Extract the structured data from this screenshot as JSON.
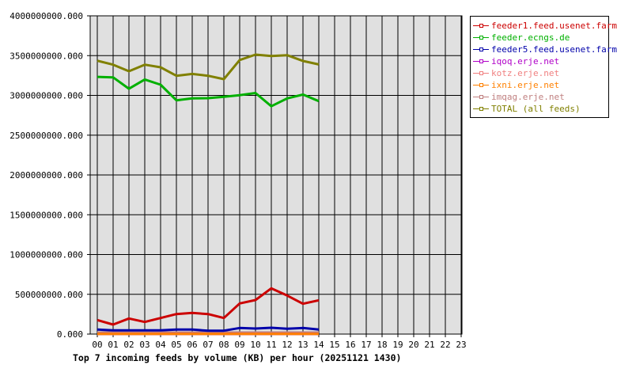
{
  "chart_data": {
    "type": "line",
    "title": "Top 7 incoming feeds by volume (KB) per hour (20251121 1430)",
    "xlabel": "",
    "ylabel": "",
    "ylim": [
      0,
      4000000000
    ],
    "yticks": [
      "0.000",
      "500000000.000",
      "1000000000.000",
      "1500000000.000",
      "2000000000.000",
      "2500000000.000",
      "3000000000.000",
      "3500000000.000",
      "4000000000.000"
    ],
    "categories": [
      "00",
      "01",
      "02",
      "03",
      "04",
      "05",
      "06",
      "07",
      "08",
      "09",
      "10",
      "11",
      "12",
      "13",
      "14",
      "15",
      "16",
      "17",
      "18",
      "19",
      "20",
      "21",
      "22",
      "23"
    ],
    "grid": true,
    "legend_position": "right",
    "series": [
      {
        "name": "feeder1.feed.usenet.farm",
        "color": "#cc0000",
        "values": [
          176000000,
          119000000,
          196000000,
          152000000,
          202000000,
          252000000,
          266000000,
          252000000,
          202000000,
          385000000,
          428000000,
          575000000,
          485000000,
          381000000,
          425000000
        ]
      },
      {
        "name": "feeder.ecngs.de",
        "color": "#00b000",
        "values": [
          3233000000,
          3227000000,
          3084000000,
          3200000000,
          3134000000,
          2938000000,
          2962000000,
          2965000000,
          2982000000,
          3003000000,
          3030000000,
          2864000000,
          2962000000,
          3011000000,
          2927000000
        ]
      },
      {
        "name": "feeder5.feed.usenet.farm",
        "color": "#0000aa",
        "values": [
          57000000,
          47000000,
          47000000,
          47000000,
          47000000,
          57000000,
          57000000,
          43000000,
          43000000,
          77000000,
          70000000,
          80000000,
          67000000,
          77000000,
          57000000
        ]
      },
      {
        "name": "iqoq.erje.net",
        "color": "#b000c8",
        "values": [
          2000000,
          2000000,
          2000000,
          2000000,
          2000000,
          2000000,
          2000000,
          2000000,
          2000000,
          2000000,
          2000000,
          2000000,
          2000000,
          2000000,
          2000000
        ]
      },
      {
        "name": "kotz.erje.net",
        "color": "#f08080",
        "values": [
          3000000,
          3000000,
          3000000,
          3000000,
          3000000,
          3000000,
          3000000,
          3000000,
          3000000,
          3000000,
          3000000,
          3000000,
          3000000,
          3000000,
          3000000
        ]
      },
      {
        "name": "ixni.erje.net",
        "color": "#ff8000",
        "values": [
          2000000,
          2000000,
          2000000,
          2000000,
          2000000,
          2000000,
          2000000,
          2000000,
          2000000,
          2000000,
          2000000,
          2000000,
          2000000,
          2000000,
          2000000
        ]
      },
      {
        "name": "imqag.erje.net",
        "color": "#c08080",
        "values": [
          10000000,
          10000000,
          10000000,
          10000000,
          10000000,
          10000000,
          10000000,
          10000000,
          10000000,
          10000000,
          10000000,
          10000000,
          10000000,
          10000000,
          10000000
        ]
      },
      {
        "name": "TOTAL (all feeds)",
        "color": "#808000",
        "values": [
          3436000000,
          3386000000,
          3303000000,
          3386000000,
          3353000000,
          3247000000,
          3270000000,
          3247000000,
          3204000000,
          3445000000,
          3512000000,
          3495000000,
          3505000000,
          3433000000,
          3389000000
        ]
      }
    ]
  },
  "legend": {
    "items": [
      {
        "label": "feeder1.feed.usenet.farm",
        "color": "#cc0000"
      },
      {
        "label": "feeder.ecngs.de",
        "color": "#00b000"
      },
      {
        "label": "feeder5.feed.usenet.farm",
        "color": "#0000aa"
      },
      {
        "label": "iqoq.erje.net",
        "color": "#b000c8"
      },
      {
        "label": "kotz.erje.net",
        "color": "#f08080"
      },
      {
        "label": "ixni.erje.net",
        "color": "#ff8000"
      },
      {
        "label": "imqag.erje.net",
        "color": "#c08080"
      },
      {
        "label": "TOTAL (all feeds)",
        "color": "#808000"
      }
    ]
  },
  "colors": {
    "plot_background": "#e0e0e0",
    "grid": "#000000",
    "axis_text": "#000000"
  }
}
